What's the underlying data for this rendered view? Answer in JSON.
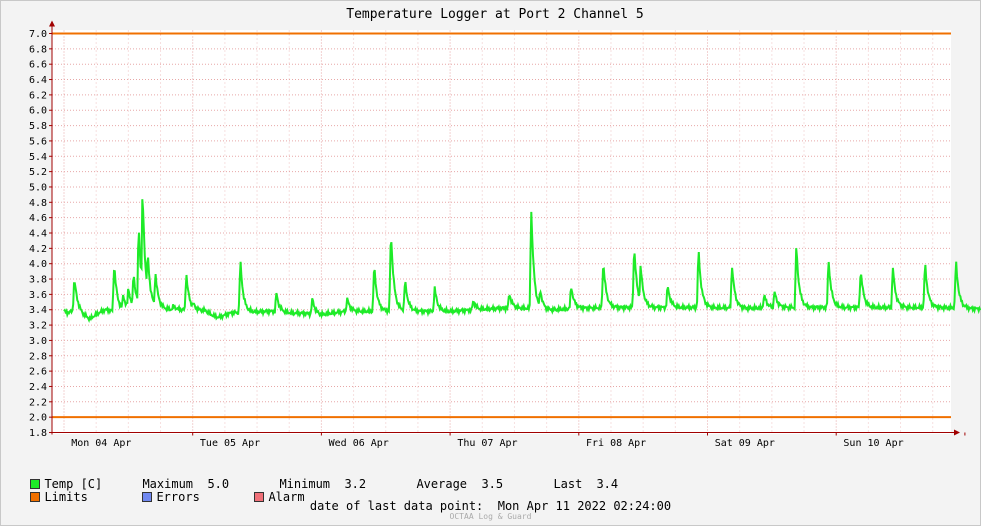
{
  "colors": {
    "temp": "#1eeb28",
    "limits": "#f07000",
    "errors": "#7088f0",
    "alarm": "#f07078",
    "grid": "#e7a7a7",
    "axis": "#a00000"
  },
  "legend": {
    "temp_label": "Temp [C]",
    "maximum_label": "Maximum",
    "maximum_value": "5.0",
    "minimum_label": "Minimum",
    "minimum_value": "3.2",
    "average_label": "Average",
    "average_value": "3.5",
    "last_label": "Last",
    "last_value": "3.4",
    "limits_label": "Limits",
    "errors_label": "Errors",
    "alarm_label": "Alarm"
  },
  "footer": {
    "last_point_label": "date of last data point:",
    "last_point_value": "Mon Apr 11 2022 02:24:00"
  },
  "watermark": "OCTAA Log & Guard",
  "chart_data": {
    "type": "line",
    "title": "Temperature Logger at Port 2 Channel 5",
    "ylim": [
      1.8,
      7.0
    ],
    "y_ticks": [
      "1.8",
      "2.0",
      "2.2",
      "2.4",
      "2.6",
      "2.8",
      "3.0",
      "3.2",
      "3.4",
      "3.6",
      "3.8",
      "4.0",
      "4.2",
      "4.4",
      "4.6",
      "4.8",
      "5.0",
      "5.2",
      "5.4",
      "5.6",
      "5.8",
      "6.0",
      "6.2",
      "6.4",
      "6.6",
      "6.8",
      "7.0"
    ],
    "x_range_days": [
      0,
      7.12
    ],
    "x_ticks": [
      "Mon 04 Apr",
      "Tue 05 Apr",
      "Wed 06 Apr",
      "Thu 07 Apr",
      "Fri 08 Apr",
      "Sat 09 Apr",
      "Sun 10 Apr"
    ],
    "limits": {
      "upper": 7.0,
      "lower": 2.0
    },
    "grid": true,
    "series": [
      {
        "name": "Temp [C]",
        "baseline": [
          [
            0.0,
            3.38
          ],
          [
            0.03,
            3.36
          ],
          [
            0.1,
            3.4
          ],
          [
            0.15,
            3.33
          ],
          [
            0.2,
            3.28
          ],
          [
            0.26,
            3.35
          ],
          [
            0.32,
            3.4
          ],
          [
            0.4,
            3.38
          ],
          [
            0.55,
            3.4
          ],
          [
            0.75,
            3.41
          ],
          [
            0.9,
            3.4
          ],
          [
            1.1,
            3.39
          ],
          [
            1.15,
            3.33
          ],
          [
            1.2,
            3.3
          ],
          [
            1.3,
            3.36
          ],
          [
            1.45,
            3.37
          ],
          [
            1.6,
            3.38
          ],
          [
            1.75,
            3.36
          ],
          [
            1.9,
            3.35
          ],
          [
            2.0,
            3.33
          ],
          [
            2.05,
            3.35
          ],
          [
            2.2,
            3.38
          ],
          [
            2.4,
            3.38
          ],
          [
            2.6,
            3.39
          ],
          [
            2.8,
            3.38
          ],
          [
            3.0,
            3.38
          ],
          [
            3.2,
            3.4
          ],
          [
            3.4,
            3.42
          ],
          [
            3.6,
            3.42
          ],
          [
            3.7,
            3.38
          ],
          [
            3.8,
            3.4
          ],
          [
            4.0,
            3.42
          ],
          [
            4.3,
            3.43
          ],
          [
            4.6,
            3.43
          ],
          [
            5.0,
            3.43
          ],
          [
            5.3,
            3.42
          ],
          [
            5.6,
            3.43
          ],
          [
            5.9,
            3.43
          ],
          [
            6.2,
            3.43
          ],
          [
            6.5,
            3.43
          ],
          [
            6.8,
            3.43
          ],
          [
            7.0,
            3.42
          ],
          [
            7.12,
            3.41
          ]
        ],
        "spikes": [
          [
            0.08,
            3.82
          ],
          [
            0.39,
            4.02
          ],
          [
            0.46,
            3.6
          ],
          [
            0.5,
            3.7
          ],
          [
            0.54,
            3.9
          ],
          [
            0.58,
            4.55
          ],
          [
            0.61,
            5.03
          ],
          [
            0.65,
            4.18
          ],
          [
            0.71,
            3.9
          ],
          [
            0.85,
            3.45
          ],
          [
            0.95,
            3.88
          ],
          [
            1.0,
            3.5
          ],
          [
            1.37,
            4.07
          ],
          [
            1.65,
            3.62
          ],
          [
            1.93,
            3.55
          ],
          [
            2.2,
            3.55
          ],
          [
            2.41,
            4.0
          ],
          [
            2.54,
            4.47
          ],
          [
            2.65,
            3.8
          ],
          [
            2.88,
            3.69
          ],
          [
            3.18,
            3.52
          ],
          [
            3.46,
            3.62
          ],
          [
            3.63,
            4.75
          ],
          [
            3.7,
            3.68
          ],
          [
            3.94,
            3.72
          ],
          [
            4.19,
            4.05
          ],
          [
            4.43,
            4.26
          ],
          [
            4.48,
            4.0
          ],
          [
            4.69,
            3.72
          ],
          [
            4.93,
            4.21
          ],
          [
            5.19,
            4.0
          ],
          [
            5.44,
            3.6
          ],
          [
            5.52,
            3.65
          ],
          [
            5.69,
            4.24
          ],
          [
            5.94,
            4.08
          ],
          [
            6.19,
            3.94
          ],
          [
            6.44,
            3.96
          ],
          [
            6.69,
            4.03
          ],
          [
            6.93,
            4.06
          ]
        ]
      }
    ]
  }
}
